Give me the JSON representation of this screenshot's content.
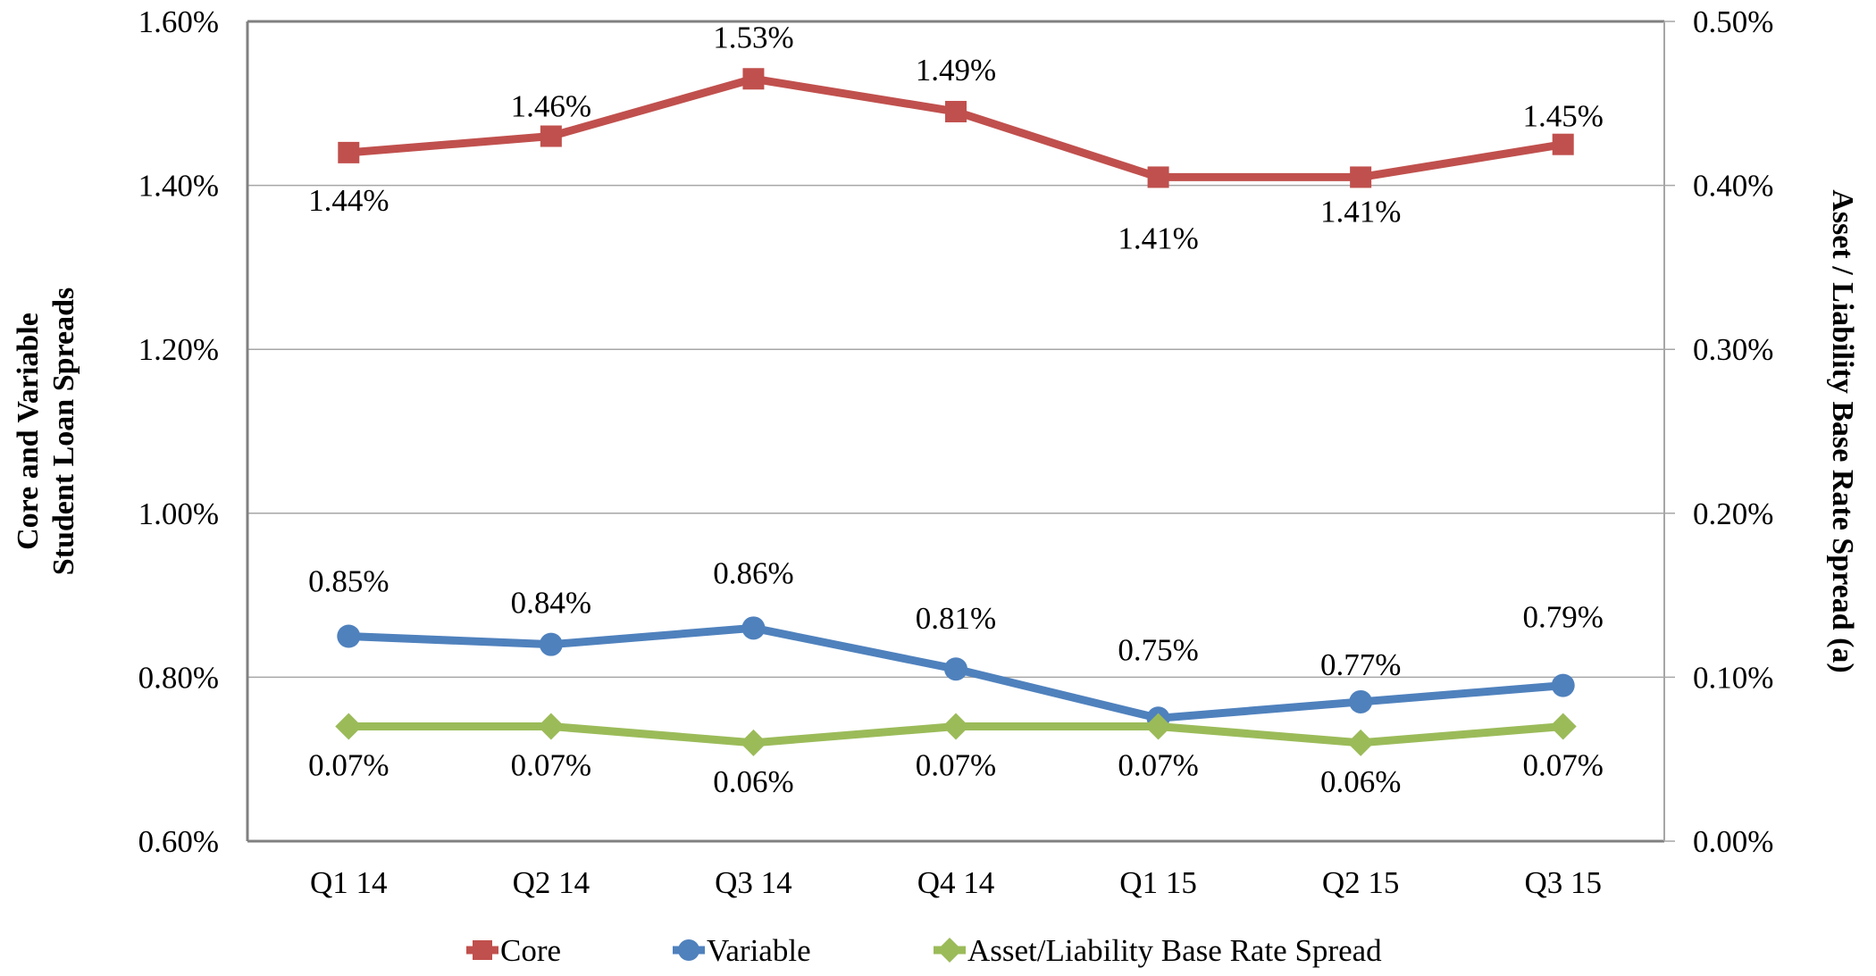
{
  "chart_data": {
    "type": "line",
    "title": "",
    "categories": [
      "Q1 14",
      "Q2 14",
      "Q3 14",
      "Q4 14",
      "Q1 15",
      "Q2 15",
      "Q3 15"
    ],
    "ylabel": [
      "Core and Variable",
      "Student Loan Spreads"
    ],
    "y2label": "Asset / Liability Base Rate Spread (a)",
    "ylim": [
      0.6,
      1.6
    ],
    "y2lim": [
      0.0,
      0.5
    ],
    "yticks": [
      "0.60%",
      "0.80%",
      "1.00%",
      "1.20%",
      "1.40%",
      "1.60%"
    ],
    "y2ticks": [
      "0.00%",
      "0.10%",
      "0.20%",
      "0.30%",
      "0.40%",
      "0.50%"
    ],
    "grid": true,
    "legend_position": "bottom",
    "series": [
      {
        "name": "Core",
        "axis": "left",
        "marker": "square",
        "color": "#C0504D",
        "values": [
          1.44,
          1.46,
          1.53,
          1.49,
          1.41,
          1.41,
          1.45
        ],
        "labels": [
          "1.44%",
          "1.46%",
          "1.53%",
          "1.49%",
          "1.41%",
          "1.41%",
          "1.45%"
        ]
      },
      {
        "name": "Variable",
        "axis": "left",
        "marker": "circle",
        "color": "#4F81BD",
        "values": [
          0.85,
          0.84,
          0.86,
          0.81,
          0.75,
          0.77,
          0.79
        ],
        "labels": [
          "0.85%",
          "0.84%",
          "0.86%",
          "0.81%",
          "0.75%",
          "0.77%",
          "0.79%"
        ]
      },
      {
        "name": "Asset/Liability Base Rate Spread",
        "axis": "right",
        "marker": "diamond",
        "color": "#9BBB59",
        "values": [
          0.07,
          0.07,
          0.06,
          0.07,
          0.07,
          0.06,
          0.07
        ],
        "labels": [
          "0.07%",
          "0.07%",
          "0.06%",
          "0.07%",
          "0.07%",
          "0.06%",
          "0.07%"
        ]
      }
    ]
  },
  "colors": {
    "frame": "#808080",
    "gridline": "#A6A6A6"
  }
}
